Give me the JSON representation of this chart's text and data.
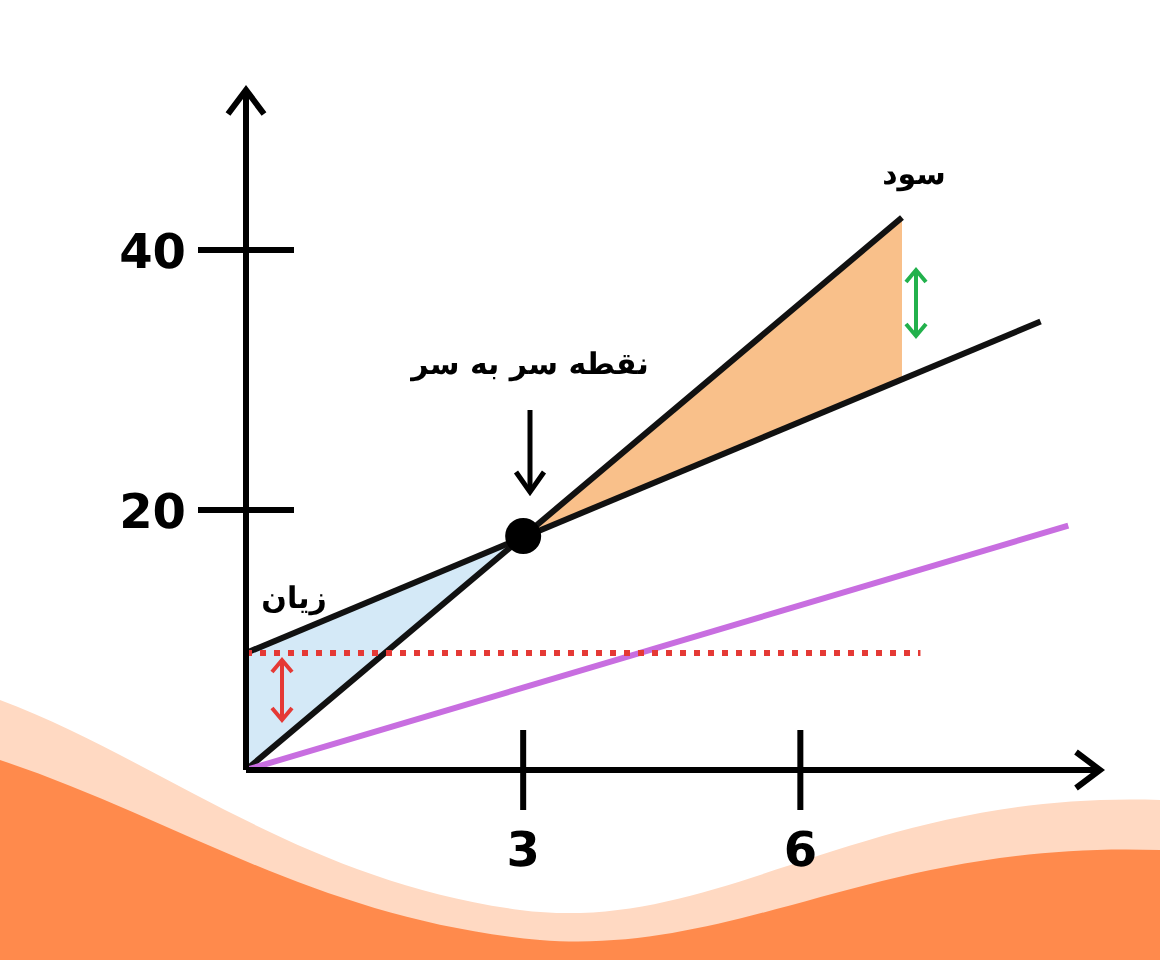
{
  "chart_data": {
    "type": "line",
    "xlim": [
      0,
      9.2
    ],
    "ylim": [
      0,
      52
    ],
    "xticks": [
      3,
      6
    ],
    "yticks": [
      20,
      40
    ],
    "series": [
      {
        "color": "#111111",
        "x": [
          0,
          7.1
        ],
        "values": [
          0,
          42.5
        ]
      },
      {
        "color": "#111111",
        "x": [
          0,
          8.6
        ],
        "values": [
          9,
          34.5
        ]
      },
      {
        "color": "#c86ee0",
        "x": [
          0,
          8.9
        ],
        "values": [
          0,
          18.8
        ]
      },
      {
        "color": "#e53935",
        "x": [
          0,
          7.3
        ],
        "values": [
          9,
          9
        ],
        "line_style": "dotted"
      },
      {
        "type": "scatter",
        "color": "#000000",
        "x": [
          3
        ],
        "values": [
          18
        ],
        "marker": "circle"
      }
    ],
    "annotations": [
      "سود",
      "زیان",
      "نقطه سر به سر"
    ]
  }
}
